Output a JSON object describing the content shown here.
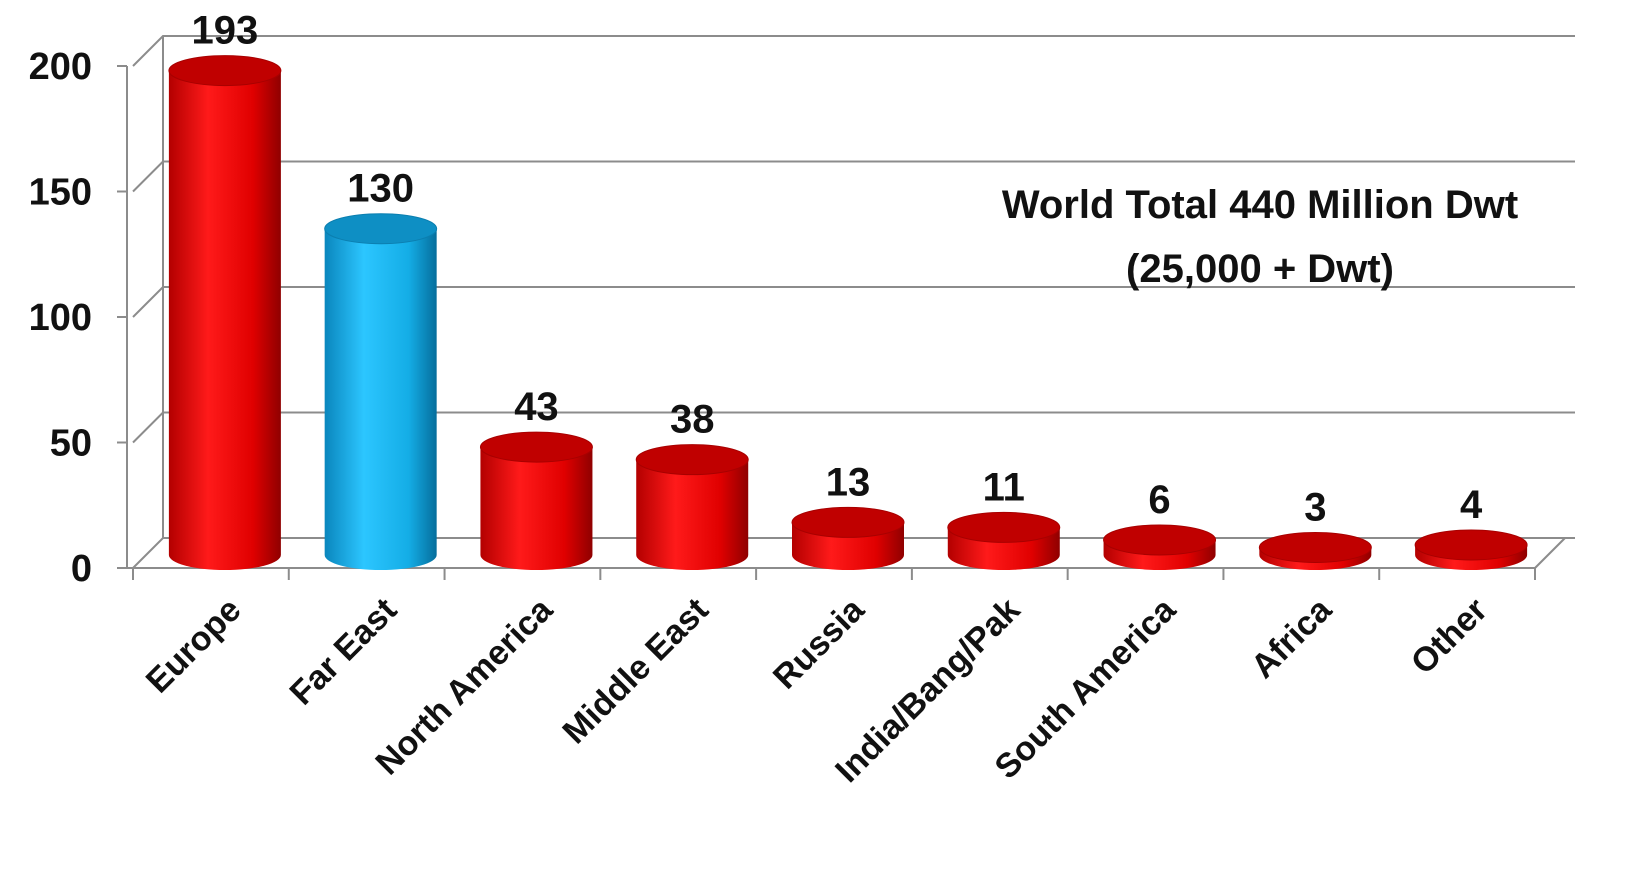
{
  "chart_data": {
    "type": "bar",
    "style": "3d-cylinder",
    "categories": [
      "Europe",
      "Far East",
      "North America",
      "Middle East",
      "Russia",
      "India/Bang/Pak",
      "South America",
      "Africa",
      "Other"
    ],
    "values": [
      193,
      130,
      43,
      38,
      13,
      11,
      6,
      3,
      4
    ],
    "data_labels": [
      "193",
      "130",
      "43",
      "38",
      "13",
      "11",
      "6",
      "3",
      "4"
    ],
    "highlighted_category": "Far East",
    "ylim": [
      0,
      200
    ],
    "yticks": [
      0,
      50,
      100,
      150,
      200
    ],
    "ytick_labels": [
      "0",
      "50",
      "100",
      "150",
      "200"
    ],
    "grid": true,
    "legend": "none",
    "annotation": {
      "line1": "World Total 440 Million Dwt",
      "line2": "(25,000 + Dwt)"
    },
    "colors": {
      "bar": "#e60000",
      "bar_dark": "#a80000",
      "bar_top": "#c00000",
      "highlight": "#19b3ec",
      "highlight_dark": "#0b7fb0",
      "highlight_top": "#0e8fc4",
      "gridline": "#8c8c8c"
    }
  }
}
